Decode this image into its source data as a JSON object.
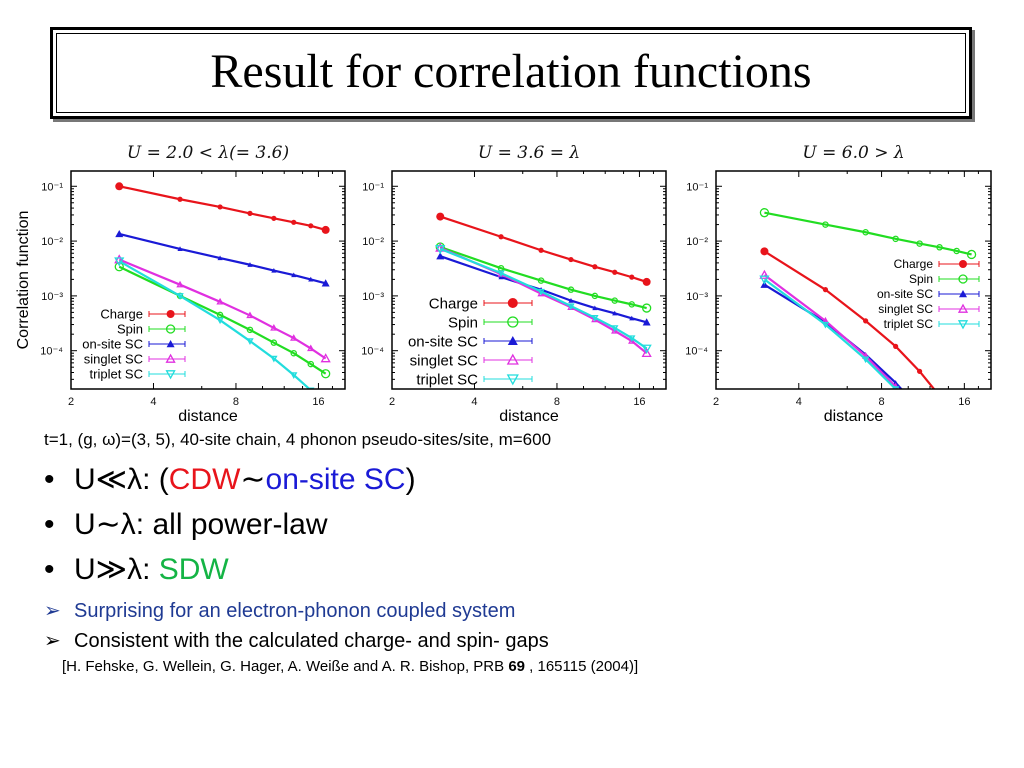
{
  "slide": {
    "title": "Result for correlation functions",
    "params": "t=1, (g, ω)=(3, 5), 40-site chain, 4 phonon pseudo-sites/site, m=600",
    "bullets": [
      {
        "prefix": "U≪λ: (",
        "parts": [
          {
            "text": "CDW",
            "color": "#e8141b"
          },
          {
            "text": "∼",
            "color": "#000000"
          },
          {
            "text": "on-site SC",
            "color": "#1a1ad6"
          }
        ],
        "suffix": ")"
      },
      {
        "prefix": "U∼λ: all power-law",
        "parts": [],
        "suffix": ""
      },
      {
        "prefix": "U≫λ: ",
        "parts": [
          {
            "text": "SDW",
            "color": "#14b445"
          }
        ],
        "suffix": ""
      }
    ],
    "arrow_items": [
      {
        "text": "Surprising for an electron-phonon coupled system",
        "color": "#1f3a93"
      },
      {
        "text": "Consistent with the calculated charge- and spin- gaps",
        "color": "#000000"
      }
    ],
    "reference": {
      "before": "[H. Fehske, G. Wellein, G. Hager, A. Weiße and A. R. Bishop, PRB ",
      "bold": "69",
      "after": " , 165115 (2004)]"
    },
    "bullet_glyph": "•",
    "arrow_glyph": "➢"
  },
  "chart_data": [
    {
      "type": "line",
      "title": "U = 2.0 < λ(= 3.6)",
      "xlabel": "distance",
      "ylabel": "Correlation function",
      "xscale": "log2",
      "yscale": "log10",
      "xlim": [
        2,
        20
      ],
      "ylim": [
        2e-05,
        0.19
      ],
      "xticks": [
        2,
        4,
        8,
        16
      ],
      "yticks": [
        {
          "v": 0.1,
          "label": "10⁻¹"
        },
        {
          "v": 0.01,
          "label": "10⁻²"
        },
        {
          "v": 0.001,
          "label": "10⁻³"
        },
        {
          "v": 0.0001,
          "label": "10⁻⁴"
        }
      ],
      "legend": "bottom-left",
      "x": [
        3,
        5,
        7,
        9,
        11,
        13,
        15,
        17
      ],
      "series": [
        {
          "name": "Charge",
          "values": [
            0.1,
            0.058,
            0.042,
            0.032,
            0.026,
            0.022,
            0.019,
            0.016
          ]
        },
        {
          "name": "Spin",
          "values": [
            0.0034,
            0.001,
            0.00045,
            0.00024,
            0.00014,
            9e-05,
            5.7e-05,
            3.8e-05
          ]
        },
        {
          "name": "on-site SC",
          "values": [
            0.0135,
            0.0072,
            0.0049,
            0.0037,
            0.0029,
            0.0024,
            0.002,
            0.0017
          ]
        },
        {
          "name": "singlet SC",
          "values": [
            0.0046,
            0.0016,
            0.00078,
            0.00044,
            0.00026,
            0.00017,
            0.00011,
            7.2e-05
          ]
        },
        {
          "name": "triplet SC",
          "values": [
            0.0043,
            0.001,
            0.00036,
            0.00015,
            7.2e-05,
            3.6e-05,
            1.9e-05,
            null
          ]
        }
      ]
    },
    {
      "type": "line",
      "title": "U = 3.6 = λ",
      "xlabel": "distance",
      "ylabel": "",
      "xscale": "log2",
      "yscale": "log10",
      "xlim": [
        2,
        20
      ],
      "ylim": [
        2e-05,
        0.19
      ],
      "xticks": [
        2,
        4,
        8,
        16
      ],
      "yticks": [
        {
          "v": 0.1,
          "label": "10⁻¹"
        },
        {
          "v": 0.01,
          "label": "10⁻²"
        },
        {
          "v": 0.001,
          "label": "10⁻³"
        },
        {
          "v": 0.0001,
          "label": "10⁻⁴"
        }
      ],
      "legend": "bottom-left",
      "x": [
        3,
        5,
        7,
        9,
        11,
        13,
        15,
        17
      ],
      "series": [
        {
          "name": "Charge",
          "values": [
            0.028,
            0.012,
            0.0068,
            0.0046,
            0.0034,
            0.0027,
            0.0022,
            0.0018
          ]
        },
        {
          "name": "Spin",
          "values": [
            0.0078,
            0.0032,
            0.0019,
            0.0013,
            0.001,
            0.00082,
            0.0007,
            0.0006
          ]
        },
        {
          "name": "on-site SC",
          "values": [
            0.0053,
            0.0022,
            0.0013,
            0.00082,
            0.0006,
            0.00048,
            0.00039,
            0.00033
          ]
        },
        {
          "name": "singlet SC",
          "values": [
            0.0075,
            0.0025,
            0.0011,
            0.00062,
            0.00037,
            0.00023,
            0.00015,
            9e-05
          ]
        },
        {
          "name": "triplet SC",
          "values": [
            0.0072,
            0.0026,
            0.0012,
            0.00065,
            0.0004,
            0.00026,
            0.00017,
            0.00011
          ]
        }
      ]
    },
    {
      "type": "line",
      "title": "U = 6.0 > λ",
      "xlabel": "distance",
      "ylabel": "",
      "xscale": "log2",
      "yscale": "log10",
      "xlim": [
        2,
        20
      ],
      "ylim": [
        2e-05,
        0.19
      ],
      "xticks": [
        2,
        4,
        8,
        16
      ],
      "yticks": [
        {
          "v": 0.1,
          "label": "10⁻¹"
        },
        {
          "v": 0.01,
          "label": "10⁻²"
        },
        {
          "v": 0.001,
          "label": "10⁻³"
        },
        {
          "v": 0.0001,
          "label": "10⁻⁴"
        }
      ],
      "legend": "top-right",
      "x": [
        3,
        5,
        7,
        9,
        11,
        13,
        15,
        17
      ],
      "series": [
        {
          "name": "Charge",
          "values": [
            0.0065,
            0.0013,
            0.00035,
            0.00012,
            4.2e-05,
            1.5e-05,
            null,
            null
          ]
        },
        {
          "name": "Spin",
          "values": [
            0.033,
            0.02,
            0.0145,
            0.011,
            0.009,
            0.0077,
            0.0066,
            0.0057
          ]
        },
        {
          "name": "on-site SC",
          "values": [
            0.0016,
            0.00033,
            8.5e-05,
            2.6e-05,
            8.5e-06,
            null,
            null,
            null
          ]
        },
        {
          "name": "singlet SC",
          "values": [
            0.0024,
            0.00035,
            8e-05,
            2.2e-05,
            null,
            null,
            null,
            null
          ]
        },
        {
          "name": "triplet SC",
          "values": [
            0.002,
            0.0003,
            7e-05,
            2e-05,
            null,
            null,
            null,
            null
          ]
        }
      ]
    }
  ],
  "series_styles": {
    "Charge": {
      "color": "#e8141b",
      "marker": "filled-circle"
    },
    "Spin": {
      "color": "#22dd22",
      "marker": "open-circle"
    },
    "on-site SC": {
      "color": "#1a1ad6",
      "marker": "filled-triangle-up"
    },
    "singlet SC": {
      "color": "#e030e0",
      "marker": "open-triangle-up"
    },
    "triplet SC": {
      "color": "#22dddd",
      "marker": "open-triangle-down"
    }
  }
}
